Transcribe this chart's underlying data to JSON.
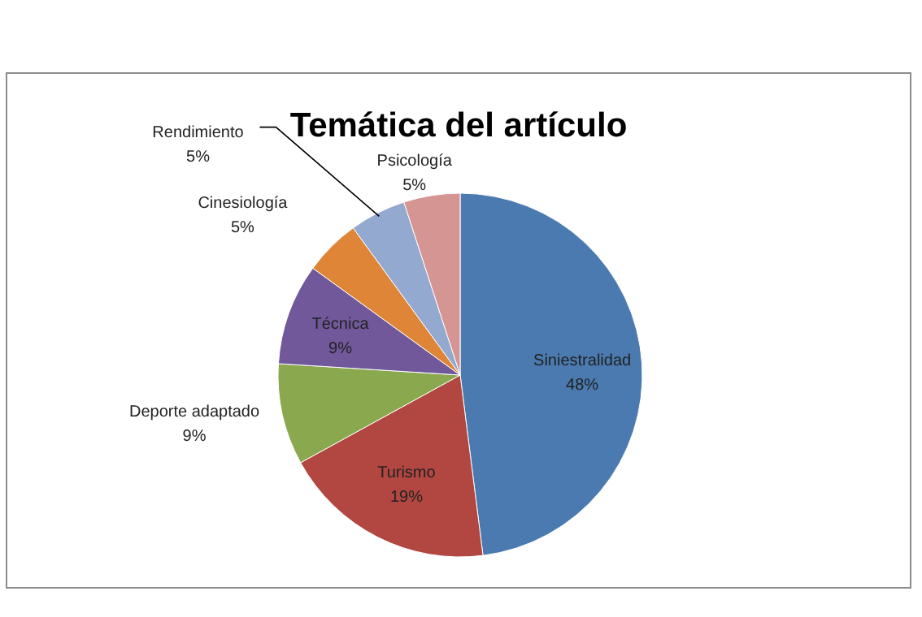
{
  "chart_data": {
    "type": "pie",
    "title": "Temática del artículo",
    "categories": [
      "Siniestralidad",
      "Turismo",
      "Deporte adaptado",
      "Técnica",
      "Cinesiología",
      "Rendimiento",
      "Psicología"
    ],
    "values": [
      48,
      19,
      9,
      9,
      5,
      5,
      5
    ],
    "colors": [
      "#4a7ab0",
      "#b24641",
      "#8aa84d",
      "#71589a",
      "#de8538",
      "#93a9cf",
      "#d59593"
    ],
    "value_labels": [
      "48%",
      "19%",
      "9%",
      "9%",
      "5%",
      "5%",
      "5%"
    ]
  }
}
